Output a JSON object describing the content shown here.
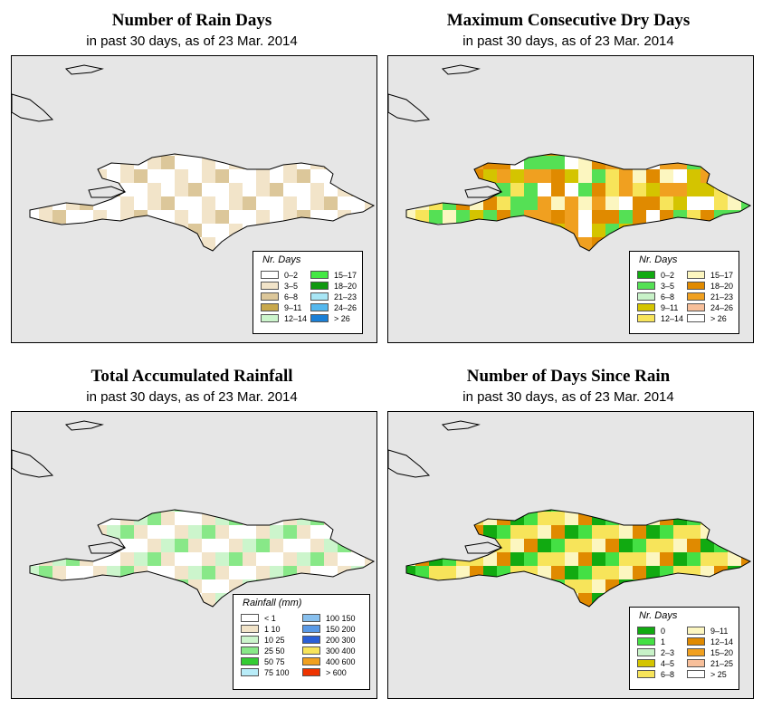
{
  "panels": [
    {
      "title": "Number of Rain Days",
      "subtitle": "in past 30 days, as of  23 Mar. 2014",
      "legend": {
        "title": "Nr. Days",
        "items": [
          {
            "label": "0–2",
            "color": "#ffffff"
          },
          {
            "label": "3–5",
            "color": "#f2e4c9"
          },
          {
            "label": "6–8",
            "color": "#dcc79a"
          },
          {
            "label": "9–11",
            "color": "#c8a84c"
          },
          {
            "label": "12–14",
            "color": "#ccf5cc"
          },
          {
            "label": "15–17",
            "color": "#44e844"
          },
          {
            "label": "18–20",
            "color": "#119911"
          },
          {
            "label": "21–23",
            "color": "#a8e6f5"
          },
          {
            "label": "24–26",
            "color": "#55b8ee"
          },
          {
            "label": "> 26",
            "color": "#1a7fd6"
          }
        ]
      }
    },
    {
      "title": "Maximum Consecutive Dry Days",
      "subtitle": "in past 30 days, as of  23 Mar. 2014",
      "legend": {
        "title": "Nr. Days",
        "items": [
          {
            "label": "0–2",
            "color": "#11aa11"
          },
          {
            "label": "3–5",
            "color": "#55e055"
          },
          {
            "label": "6–8",
            "color": "#c8f2c8"
          },
          {
            "label": "9–11",
            "color": "#d4c400"
          },
          {
            "label": "12–14",
            "color": "#f7e45a"
          },
          {
            "label": "15–17",
            "color": "#fcf6c0"
          },
          {
            "label": "18–20",
            "color": "#e08a00"
          },
          {
            "label": "21–23",
            "color": "#f0a020"
          },
          {
            "label": "24–26",
            "color": "#f7bf9a"
          },
          {
            "label": "> 26",
            "color": "#ffffff"
          }
        ]
      }
    },
    {
      "title": "Total Accumulated Rainfall",
      "subtitle": "in past 30 days, as of  23 Mar. 2014",
      "legend": {
        "title": "Rainfall (mm)",
        "items": [
          {
            "label": "< 1",
            "color": "#ffffff"
          },
          {
            "label": "1      10",
            "color": "#f2e4c9"
          },
          {
            "label": "10    25",
            "color": "#ccf5cc"
          },
          {
            "label": "25    50",
            "color": "#88e888"
          },
          {
            "label": "50    75",
            "color": "#33cc33"
          },
          {
            "label": "75   100",
            "color": "#b8ecf8"
          },
          {
            "label": "100  150",
            "color": "#88c0ee"
          },
          {
            "label": "150  200",
            "color": "#5a9ae6"
          },
          {
            "label": "200  300",
            "color": "#2a5fd6"
          },
          {
            "label": "300  400",
            "color": "#f7e45a"
          },
          {
            "label": "400  600",
            "color": "#f0a020"
          },
          {
            "label": "> 600",
            "color": "#ee3300"
          }
        ]
      }
    },
    {
      "title": "Number of Days Since Rain",
      "subtitle": "in past 30 days, as of  23 Mar. 2014",
      "legend": {
        "title": "Nr. Days",
        "items": [
          {
            "label": "0",
            "color": "#11aa11"
          },
          {
            "label": "1",
            "color": "#44e044"
          },
          {
            "label": "2–3",
            "color": "#c8f2c8"
          },
          {
            "label": "4–5",
            "color": "#d4c400"
          },
          {
            "label": "6–8",
            "color": "#f7e45a"
          },
          {
            "label": "9–11",
            "color": "#fcf6c0"
          },
          {
            "label": "12–14",
            "color": "#e08a00"
          },
          {
            "label": "15–20",
            "color": "#f0a020"
          },
          {
            "label": "21–25",
            "color": "#f7bf9a"
          },
          {
            "label": "> 25",
            "color": "#ffffff"
          }
        ]
      }
    }
  ]
}
